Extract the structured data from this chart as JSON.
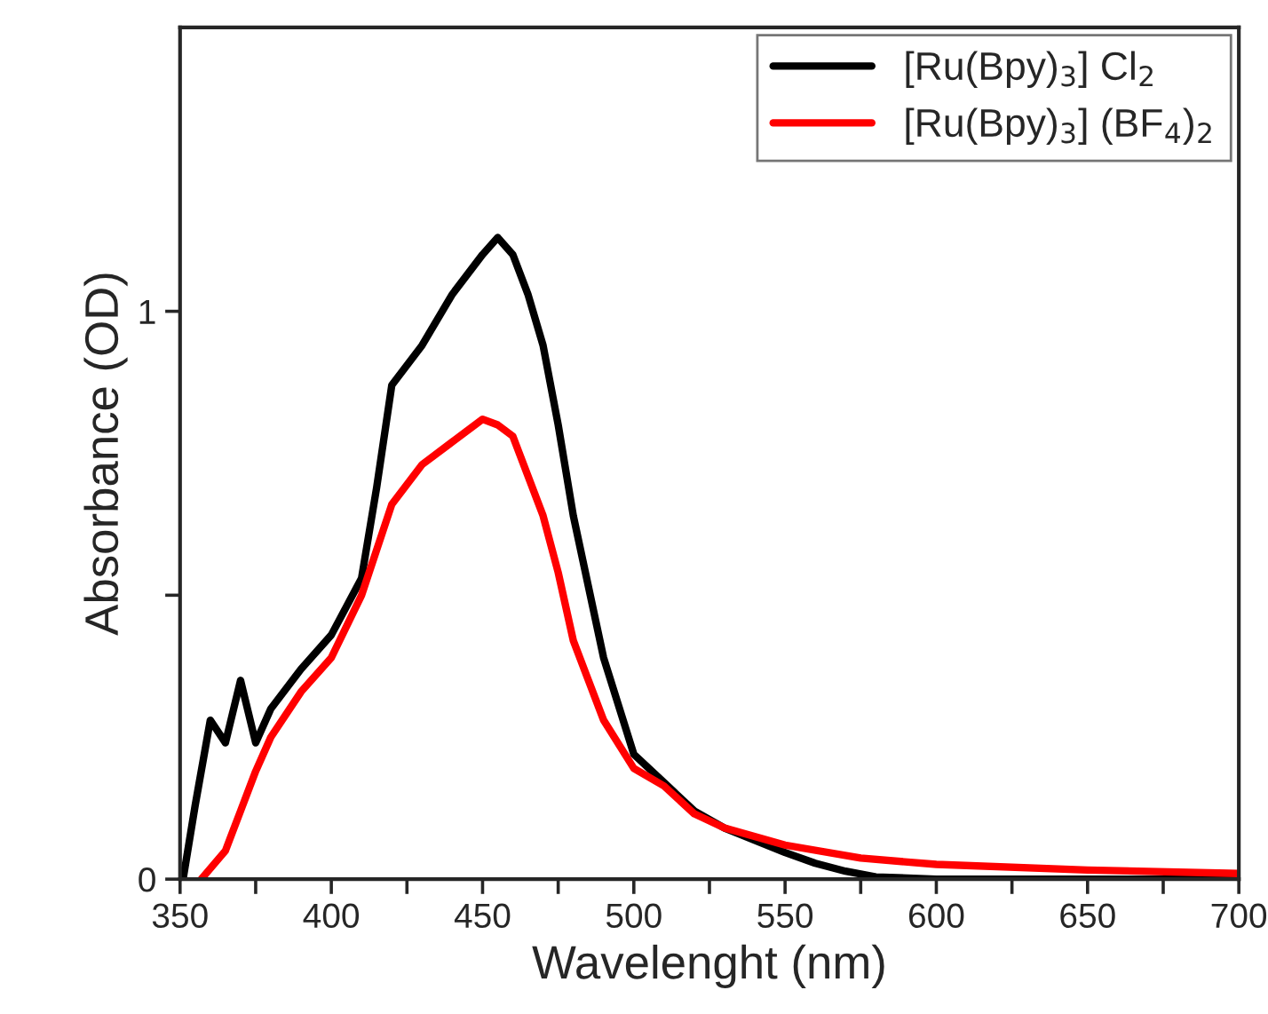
{
  "chart_data": {
    "type": "line",
    "xlabel": "Wavelenght (nm)",
    "ylabel": "Absorbance (OD)",
    "xlim": [
      350,
      700
    ],
    "xticks": [
      350,
      {
        "value": 375,
        "label": null
      },
      400,
      {
        "value": 425,
        "label": null
      },
      450,
      {
        "value": 475,
        "label": null
      },
      500,
      {
        "value": 525,
        "label": null
      },
      550,
      {
        "value": 575,
        "label": null
      },
      600,
      {
        "value": 625,
        "label": null
      },
      650,
      {
        "value": 675,
        "label": null
      },
      700
    ],
    "ylim": [
      0,
      1.5
    ],
    "yticks": [
      0,
      {
        "value": 0.5,
        "label": null
      },
      1
    ],
    "legend": "top right",
    "grid": false,
    "line_style": "solid",
    "marker": "none",
    "series": [
      {
        "name": "[Ru(Bpy)$_{3}$] Cl$_{2}$",
        "color": "#000000",
        "x": [
          351,
          355,
          360,
          365,
          370,
          375,
          380,
          390,
          400,
          410,
          415,
          420,
          430,
          440,
          450,
          455,
          460,
          465,
          470,
          475,
          480,
          490,
          500,
          510,
          520,
          530,
          550,
          560,
          570,
          580,
          600,
          650,
          700
        ],
        "values": [
          0,
          0.13,
          0.28,
          0.24,
          0.35,
          0.24,
          0.3,
          0.37,
          0.43,
          0.53,
          0.69,
          0.87,
          0.94,
          1.03,
          1.1,
          1.13,
          1.1,
          1.03,
          0.94,
          0.8,
          0.64,
          0.39,
          0.22,
          0.17,
          0.12,
          0.09,
          0.047,
          0.028,
          0.014,
          0.004,
          0,
          0,
          0
        ]
      },
      {
        "name": "[Ru(Bpy)$_{3}$] (BF$_{4}$)$_{2}$",
        "color": "#ff0000",
        "x": [
          357,
          365,
          370,
          375,
          380,
          390,
          400,
          410,
          420,
          430,
          440,
          450,
          455,
          460,
          465,
          470,
          475,
          480,
          490,
          500,
          510,
          520,
          530,
          550,
          575,
          600,
          650,
          700
        ],
        "values": [
          0,
          0.05,
          0.12,
          0.19,
          0.25,
          0.33,
          0.39,
          0.5,
          0.66,
          0.73,
          0.77,
          0.81,
          0.8,
          0.78,
          0.71,
          0.64,
          0.54,
          0.42,
          0.28,
          0.195,
          0.164,
          0.115,
          0.09,
          0.06,
          0.037,
          0.026,
          0.016,
          0.01
        ]
      }
    ]
  }
}
